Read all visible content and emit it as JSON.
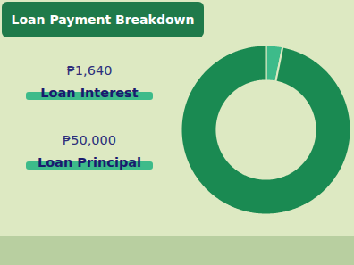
{
  "chart_data": {
    "type": "donut",
    "title": "Loan Payment Breakdown",
    "categories": [
      "Loan Interest",
      "Loan Principal"
    ],
    "values": [
      1640,
      50000
    ],
    "value_labels": [
      "₱1,640",
      "₱50,000"
    ],
    "colors": [
      "#3dbb8a",
      "#1a8a52"
    ]
  }
}
